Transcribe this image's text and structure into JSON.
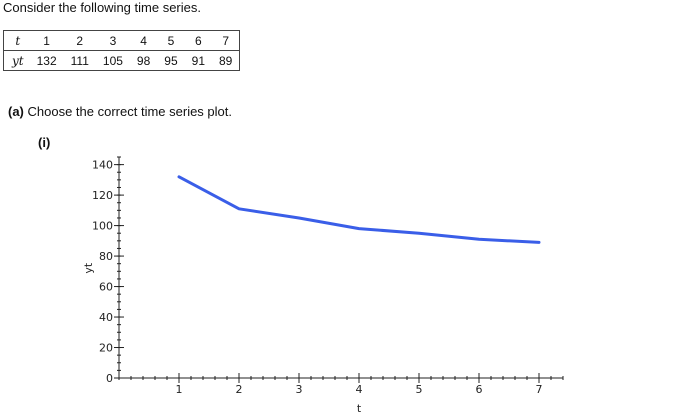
{
  "intro_text": "Consider the following time series.",
  "table": {
    "row_t_label": "t",
    "row_y_label": "yt",
    "t_values": [
      "1",
      "2",
      "3",
      "4",
      "5",
      "6",
      "7"
    ],
    "y_values": [
      "132",
      "111",
      "105",
      "98",
      "95",
      "91",
      "89"
    ]
  },
  "question": {
    "part_label": "(a)",
    "text": "Choose the correct time series plot."
  },
  "option_label": "(i)",
  "chart_data": {
    "type": "line",
    "x": [
      1,
      2,
      3,
      4,
      5,
      6,
      7
    ],
    "series": [
      {
        "values": [
          132,
          111,
          105,
          98,
          95,
          91,
          89
        ]
      }
    ],
    "xlabel": "t",
    "ylabel": "yt",
    "xlim": [
      0,
      7.4
    ],
    "ylim": [
      0,
      145
    ],
    "x_ticks": [
      1,
      2,
      3,
      4,
      5,
      6,
      7
    ],
    "y_ticks": [
      0,
      20,
      40,
      60,
      80,
      100,
      120,
      140
    ],
    "grid": false,
    "line_color": "#3a5ee8"
  }
}
